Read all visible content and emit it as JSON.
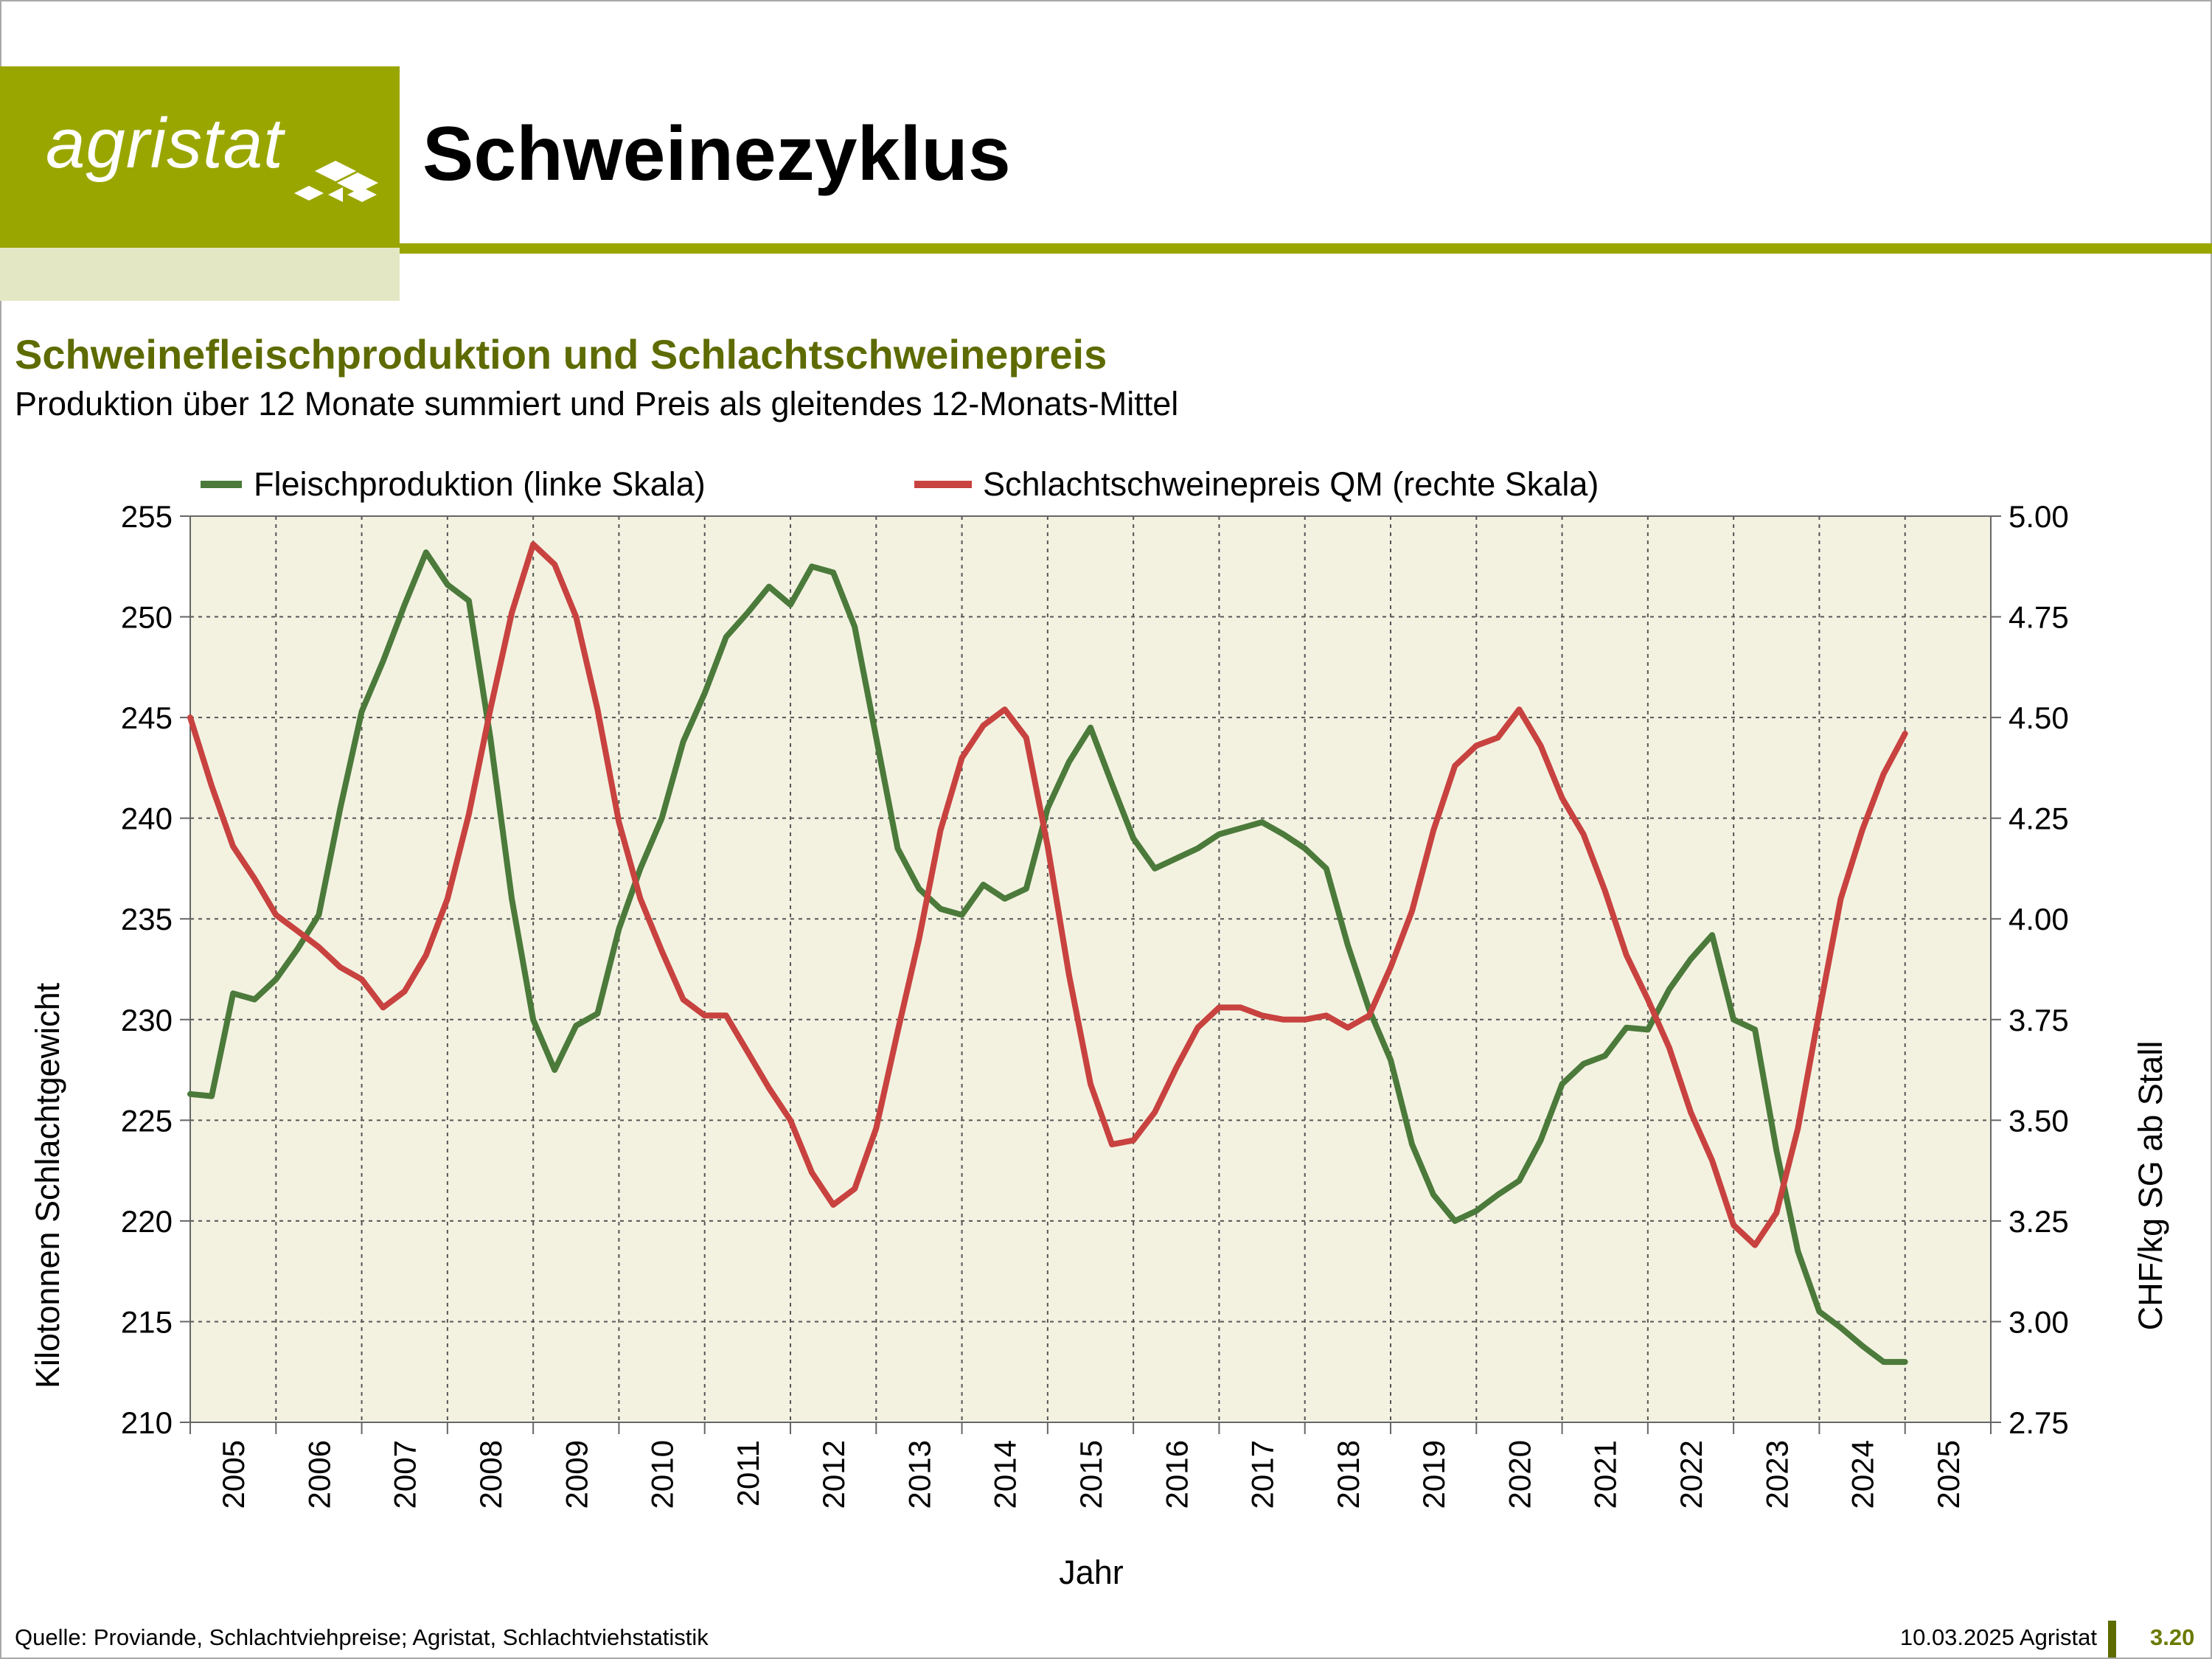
{
  "logo": {
    "text": "agristat"
  },
  "header": {
    "title": "Schweinezyklus"
  },
  "subtitle": "Schweinefleischproduktion und Schlachtschweinepreis",
  "subsubtitle": "Produktion über 12 Monate summiert und Preis als gleitendes 12-Monats-Mittel",
  "footer": {
    "source": "Quelle: Proviande, Schlachtviehpreise; Agristat, Schlachtviehstatistik",
    "date": "10.03.2025 Agristat",
    "page": "3.20"
  },
  "colors": {
    "brand": "#9aa600",
    "production": "#4b7a3a",
    "price": "#c8423f",
    "plot_bg": "#f3f2e1"
  },
  "chart_data": {
    "type": "line",
    "xlabel": "Jahr",
    "ylabel_left": "Kilotonnen Schlachtgewicht",
    "ylabel_right": "CHF/kg SG ab Stall",
    "ylim_left": [
      210,
      255
    ],
    "ylim_right": [
      2.75,
      5.0
    ],
    "yticks_left": [
      "210",
      "215",
      "220",
      "225",
      "230",
      "235",
      "240",
      "245",
      "250",
      "255"
    ],
    "yticks_right": [
      "2.75",
      "3.00",
      "3.25",
      "3.50",
      "3.75",
      "4.00",
      "4.25",
      "4.50",
      "4.75",
      "5.00"
    ],
    "xticks": [
      "2005",
      "2006",
      "2007",
      "2008",
      "2009",
      "2010",
      "2011",
      "2012",
      "2013",
      "2014",
      "2015",
      "2016",
      "2017",
      "2018",
      "2019",
      "2020",
      "2021",
      "2022",
      "2023",
      "2024",
      "2025"
    ],
    "xlim": [
      2005.0,
      2026.0
    ],
    "grid": true,
    "legend_position": "top",
    "series": [
      {
        "name": "Fleischproduktion (linke Skala)",
        "axis": "left",
        "x": [
          2005.0,
          2005.25,
          2005.5,
          2005.75,
          2006.0,
          2006.25,
          2006.5,
          2006.75,
          2007.0,
          2007.25,
          2007.5,
          2007.75,
          2008.0,
          2008.25,
          2008.5,
          2008.75,
          2009.0,
          2009.25,
          2009.5,
          2009.75,
          2010.0,
          2010.25,
          2010.5,
          2010.75,
          2011.0,
          2011.25,
          2011.5,
          2011.75,
          2012.0,
          2012.25,
          2012.5,
          2012.75,
          2013.0,
          2013.25,
          2013.5,
          2013.75,
          2014.0,
          2014.25,
          2014.5,
          2014.75,
          2015.0,
          2015.25,
          2015.5,
          2015.75,
          2016.0,
          2016.25,
          2016.5,
          2016.75,
          2017.0,
          2017.25,
          2017.5,
          2017.75,
          2018.0,
          2018.25,
          2018.5,
          2018.75,
          2019.0,
          2019.25,
          2019.5,
          2019.75,
          2020.0,
          2020.25,
          2020.5,
          2020.75,
          2021.0,
          2021.25,
          2021.5,
          2021.75,
          2022.0,
          2022.25,
          2022.5,
          2022.75,
          2023.0,
          2023.25,
          2023.5,
          2023.75,
          2024.0,
          2024.25,
          2024.5,
          2024.75,
          2025.0
        ],
        "values": [
          226.3,
          226.2,
          231.3,
          231.0,
          232.0,
          233.5,
          235.2,
          240.5,
          245.3,
          247.8,
          250.6,
          253.2,
          251.6,
          250.8,
          244.0,
          236.0,
          230.0,
          227.5,
          229.7,
          230.3,
          234.5,
          237.5,
          240.0,
          243.8,
          246.2,
          249.0,
          250.2,
          251.5,
          250.6,
          252.5,
          252.2,
          249.5,
          244.0,
          238.5,
          236.5,
          235.5,
          235.2,
          236.7,
          236.0,
          236.5,
          240.5,
          242.8,
          244.5,
          241.7,
          239.0,
          237.5,
          238.0,
          238.5,
          239.2,
          239.5,
          239.8,
          239.2,
          238.5,
          237.5,
          233.7,
          230.5,
          228.0,
          223.8,
          221.3,
          220.0,
          220.5,
          221.3,
          222.0,
          224.0,
          226.8,
          227.8,
          228.2,
          229.6,
          229.5,
          231.5,
          233.0,
          234.2,
          230.0,
          229.5,
          223.5,
          218.5,
          215.5,
          214.7,
          213.8,
          213.0,
          213.0
        ]
      },
      {
        "name": "Schlachtschweinepreis QM (rechte Skala)",
        "axis": "right",
        "x": [
          2005.0,
          2005.25,
          2005.5,
          2005.75,
          2006.0,
          2006.25,
          2006.5,
          2006.75,
          2007.0,
          2007.25,
          2007.5,
          2007.75,
          2008.0,
          2008.25,
          2008.5,
          2008.75,
          2009.0,
          2009.25,
          2009.5,
          2009.75,
          2010.0,
          2010.25,
          2010.5,
          2010.75,
          2011.0,
          2011.25,
          2011.5,
          2011.75,
          2012.0,
          2012.25,
          2012.5,
          2012.75,
          2013.0,
          2013.25,
          2013.5,
          2013.75,
          2014.0,
          2014.25,
          2014.5,
          2014.75,
          2015.0,
          2015.25,
          2015.5,
          2015.75,
          2016.0,
          2016.25,
          2016.5,
          2016.75,
          2017.0,
          2017.25,
          2017.5,
          2017.75,
          2018.0,
          2018.25,
          2018.5,
          2018.75,
          2019.0,
          2019.25,
          2019.5,
          2019.75,
          2020.0,
          2020.25,
          2020.5,
          2020.75,
          2021.0,
          2021.25,
          2021.5,
          2021.75,
          2022.0,
          2022.25,
          2022.5,
          2022.75,
          2023.0,
          2023.25,
          2023.5,
          2023.75,
          2024.0,
          2024.25,
          2024.5,
          2024.75,
          2025.0
        ],
        "values": [
          4.5,
          4.33,
          4.18,
          4.1,
          4.01,
          3.97,
          3.93,
          3.88,
          3.85,
          3.78,
          3.82,
          3.91,
          4.05,
          4.26,
          4.52,
          4.76,
          4.93,
          4.88,
          4.75,
          4.52,
          4.24,
          4.05,
          3.92,
          3.8,
          3.76,
          3.76,
          3.67,
          3.58,
          3.5,
          3.37,
          3.29,
          3.33,
          3.48,
          3.72,
          3.95,
          4.22,
          4.4,
          4.48,
          4.52,
          4.45,
          4.18,
          3.86,
          3.59,
          3.44,
          3.45,
          3.52,
          3.63,
          3.73,
          3.78,
          3.78,
          3.76,
          3.75,
          3.75,
          3.76,
          3.73,
          3.76,
          3.88,
          4.02,
          4.22,
          4.38,
          4.43,
          4.45,
          4.52,
          4.43,
          4.3,
          4.21,
          4.07,
          3.91,
          3.8,
          3.68,
          3.52,
          3.4,
          3.24,
          3.19,
          3.27,
          3.48,
          3.77,
          4.05,
          4.22,
          4.36,
          4.46
        ]
      }
    ]
  }
}
